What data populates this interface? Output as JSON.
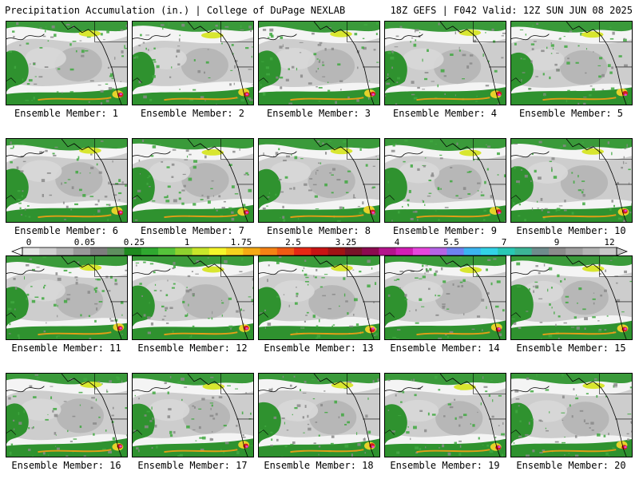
{
  "header": {
    "title": "Precipitation Accumulation (in.) | College of DuPage NEXLAB",
    "run_info": "18Z GEFS | F042 Valid: 12Z SUN JUN 08 2025"
  },
  "panels": [
    {
      "label": "Ensemble Member: 1"
    },
    {
      "label": "Ensemble Member: 2"
    },
    {
      "label": "Ensemble Member: 3"
    },
    {
      "label": "Ensemble Member: 4"
    },
    {
      "label": "Ensemble Member: 5"
    },
    {
      "label": "Ensemble Member: 6"
    },
    {
      "label": "Ensemble Member: 7"
    },
    {
      "label": "Ensemble Member: 8"
    },
    {
      "label": "Ensemble Member: 9"
    },
    {
      "label": "Ensemble Member: 10"
    },
    {
      "label": "Ensemble Member: 11"
    },
    {
      "label": "Ensemble Member: 12"
    },
    {
      "label": "Ensemble Member: 13"
    },
    {
      "label": "Ensemble Member: 14"
    },
    {
      "label": "Ensemble Member: 15"
    },
    {
      "label": "Ensemble Member: 16"
    },
    {
      "label": "Ensemble Member: 17"
    },
    {
      "label": "Ensemble Member: 18"
    },
    {
      "label": "Ensemble Member: 19"
    },
    {
      "label": "Ensemble Member: 20"
    }
  ],
  "colorbar": {
    "labels": [
      "0",
      "0.05",
      "0.25",
      "1",
      "1.75",
      "2.5",
      "3.25",
      "4",
      "5.5",
      "7",
      "9",
      "12"
    ],
    "colors": [
      "#e6e6e6",
      "#cfcfcf",
      "#b4b4b4",
      "#999999",
      "#7d7d7d",
      "#5f8f5f",
      "#1f8a1f",
      "#2fa82f",
      "#55c23a",
      "#8ed12e",
      "#c8e62a",
      "#f5f52a",
      "#f5d21e",
      "#f5aa14",
      "#f58214",
      "#f05a14",
      "#e62814",
      "#c81414",
      "#a01414",
      "#781428",
      "#8c0a50",
      "#b4148c",
      "#d21eb4",
      "#e646dc",
      "#b464e6",
      "#6e82f0",
      "#3cb4f0",
      "#32d2e6",
      "#28c8b4",
      "#3cb496",
      "#6e8c8c",
      "#8c8c8c",
      "#a0a0a0",
      "#b4b4b4",
      "#c8c8c8"
    ]
  }
}
